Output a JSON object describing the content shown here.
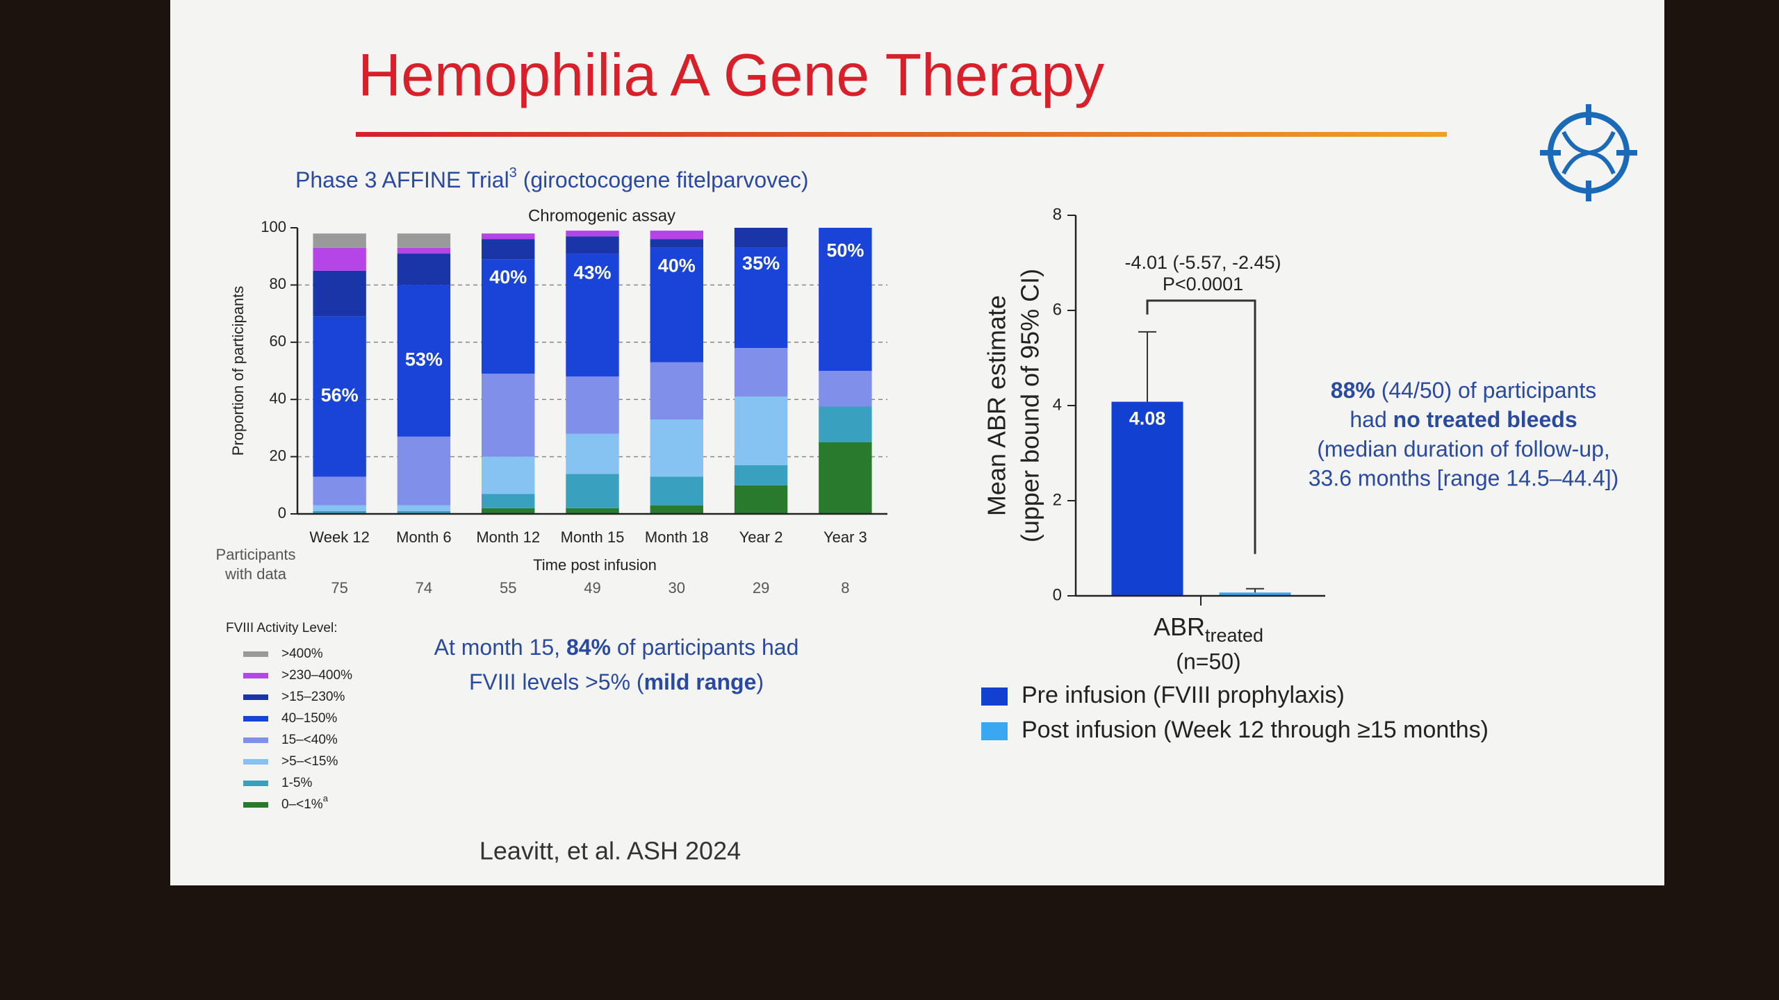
{
  "slide": {
    "title": "Hemophilia A Gene Therapy",
    "subtitle": [
      "Phase 3 AFFINE Trial",
      "3",
      " (giroctocogene fitelparvovec)"
    ],
    "annotation": [
      [
        "At month 15, ",
        "84%",
        " of participants had"
      ],
      [
        "FVIII levels >5% (",
        "mild range",
        ")"
      ]
    ],
    "finding": [
      [
        "88%",
        " (44/50) of participants"
      ],
      [
        "had ",
        "no treated bleeds"
      ],
      [
        "(median duration of follow-up,"
      ],
      [
        "33.6 months [range 14.5–44.4])"
      ]
    ],
    "citation": "Leavitt, et al. ASH 2024"
  },
  "chart_data": [
    {
      "type": "stacked_bar",
      "title": "Chromogenic assay",
      "xlabel": "Time post infusion",
      "ylabel": "Proportion of participants",
      "categories": [
        "Week 12",
        "Month 6",
        "Month 12",
        "Month 15",
        "Month 18",
        "Year 2",
        "Year 3"
      ],
      "ylim": [
        0,
        100
      ],
      "yticks": [
        0,
        20,
        40,
        60,
        80,
        100
      ],
      "grid": true,
      "participants": {
        "label": [
          "Participants",
          "with data"
        ],
        "values": [
          75,
          74,
          55,
          49,
          30,
          29,
          8
        ]
      },
      "legend_title": "FVIII Activity Level:",
      "series": [
        {
          "name": "0–<1%",
          "footnote_mark": "a",
          "color": "#2a7a2e",
          "values": [
            0,
            0,
            2,
            2,
            3,
            10,
            25
          ]
        },
        {
          "name": "1-5%",
          "color": "#3aa0c0",
          "values": [
            1,
            1,
            5,
            12,
            10,
            7,
            12.5
          ]
        },
        {
          "name": ">5–<15%",
          "color": "#86c2f2",
          "values": [
            2,
            2,
            13,
            14,
            20,
            24,
            0
          ]
        },
        {
          "name": "15–<40%",
          "color": "#7f8fea",
          "values": [
            10,
            24,
            29,
            20,
            20,
            17,
            12.5
          ]
        },
        {
          "name": "40–150%",
          "color": "#1a44d8",
          "values": [
            56,
            53,
            40,
            43,
            40,
            35,
            50
          ],
          "value_labels": [
            "56%",
            "53%",
            "40%",
            "43%",
            "40%",
            "35%",
            "50%"
          ]
        },
        {
          "name": ">15–230%",
          "color": "#1a35a8",
          "values": [
            16,
            11,
            7,
            6,
            3,
            7,
            0
          ]
        },
        {
          "name": ">230–400%",
          "color": "#b545e6",
          "values": [
            8,
            2,
            2,
            2,
            3,
            0,
            0
          ]
        },
        {
          "name": ">400%",
          "color": "#9a9a9a",
          "values": [
            5,
            5,
            0,
            0,
            0,
            0,
            0
          ]
        }
      ]
    },
    {
      "type": "bar_error",
      "ylabel": [
        "Mean ABR estimate",
        "(upper bound of 95% CI)"
      ],
      "category": "ABR",
      "category_sub": "treated",
      "category_note": "(n=50)",
      "ylim": [
        0,
        8
      ],
      "yticks": [
        0,
        2,
        4,
        6,
        8
      ],
      "series": [
        {
          "name": "Pre infusion (FVIII prophylaxis)",
          "color": "#1240d0",
          "values": [
            4.08
          ],
          "ci_upper": [
            5.55
          ],
          "show_value": true
        },
        {
          "name": "Post infusion (Week 12 through ≥15 months)",
          "color": "#3aa8f0",
          "values": [
            0.07
          ],
          "ci_upper": [
            0.15
          ]
        }
      ],
      "comparison": {
        "label": "-4.01 (-5.57, -2.45)",
        "p": "P<0.0001"
      }
    }
  ]
}
